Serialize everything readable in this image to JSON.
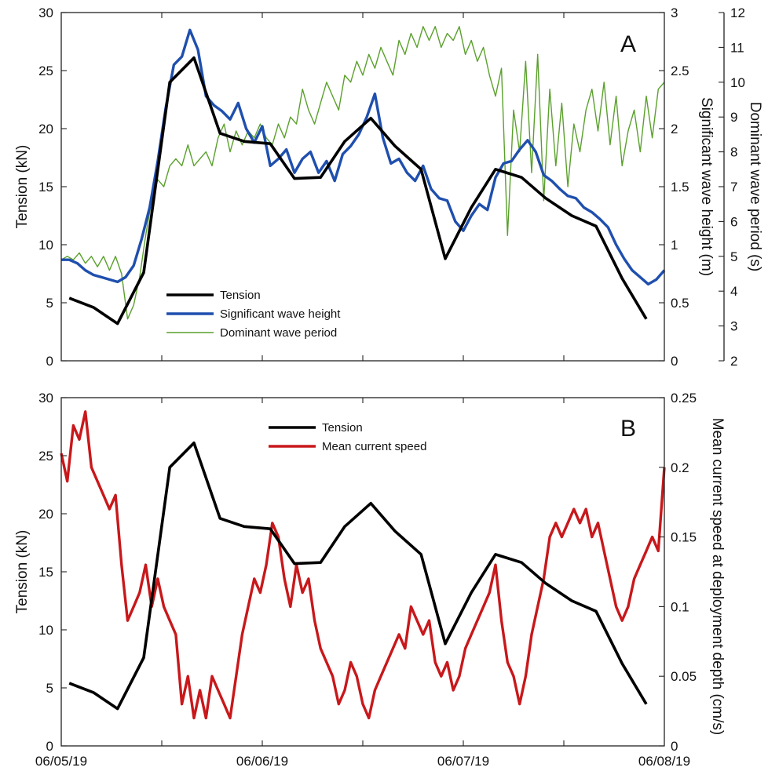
{
  "chart_data": [
    {
      "panel": "A",
      "type": "line",
      "x_ticks": [
        "06/05/19",
        "06/06/19",
        "06/07/19",
        "06/08/19"
      ],
      "xlim": [
        0,
        3
      ],
      "ylabel_left": "Tension (kN)",
      "ylim_left": [
        0,
        30
      ],
      "yticks_left": [
        0,
        5,
        10,
        15,
        20,
        25,
        30
      ],
      "ylabel_right1": "Significant wave height (m)",
      "ylim_right1": [
        0,
        3
      ],
      "yticks_right1": [
        0,
        0.5,
        1,
        1.5,
        2,
        2.5,
        3
      ],
      "ylabel_right2": "Dominant wave period (s)",
      "ylim_right2": [
        2,
        12
      ],
      "yticks_right2": [
        2,
        3,
        4,
        5,
        6,
        7,
        8,
        9,
        10,
        11,
        12
      ],
      "legend_position": "bottom-left",
      "series": [
        {
          "name": "Tension",
          "axis": "left",
          "color": "#000000",
          "x": [
            0.04,
            0.16,
            0.28,
            0.41,
            0.54,
            0.66,
            0.79,
            0.91,
            1.04,
            1.16,
            1.29,
            1.41,
            1.54,
            1.66,
            1.79,
            1.91,
            2.04,
            2.16,
            2.29,
            2.41,
            2.54,
            2.66,
            2.79,
            2.91
          ],
          "y": [
            5.4,
            4.6,
            3.2,
            7.6,
            24.0,
            26.1,
            19.6,
            18.9,
            18.7,
            15.7,
            15.8,
            18.9,
            20.9,
            18.5,
            16.5,
            8.8,
            13.2,
            16.5,
            15.8,
            14.0,
            12.5,
            11.6,
            7.1,
            3.6
          ]
        },
        {
          "name": "Significant wave height",
          "axis": "right1",
          "color": "#1f4fae",
          "x": [
            0.0,
            0.04,
            0.08,
            0.12,
            0.16,
            0.2,
            0.24,
            0.28,
            0.32,
            0.36,
            0.4,
            0.44,
            0.48,
            0.52,
            0.56,
            0.6,
            0.64,
            0.68,
            0.72,
            0.76,
            0.8,
            0.84,
            0.88,
            0.92,
            0.96,
            1.0,
            1.04,
            1.08,
            1.12,
            1.16,
            1.2,
            1.24,
            1.28,
            1.32,
            1.36,
            1.4,
            1.44,
            1.48,
            1.52,
            1.56,
            1.6,
            1.64,
            1.68,
            1.72,
            1.76,
            1.8,
            1.84,
            1.88,
            1.92,
            1.96,
            2.0,
            2.04,
            2.08,
            2.12,
            2.16,
            2.2,
            2.24,
            2.28,
            2.32,
            2.36,
            2.4,
            2.44,
            2.48,
            2.52,
            2.56,
            2.6,
            2.64,
            2.68,
            2.72,
            2.76,
            2.8,
            2.84,
            2.88,
            2.92,
            2.96,
            3.0
          ],
          "y": [
            0.87,
            0.87,
            0.84,
            0.78,
            0.74,
            0.72,
            0.7,
            0.68,
            0.72,
            0.82,
            1.05,
            1.32,
            1.72,
            2.18,
            2.55,
            2.62,
            2.85,
            2.68,
            2.28,
            2.2,
            2.15,
            2.08,
            2.22,
            2.0,
            1.88,
            2.02,
            1.68,
            1.74,
            1.82,
            1.62,
            1.74,
            1.8,
            1.62,
            1.72,
            1.55,
            1.78,
            1.85,
            1.95,
            2.1,
            2.3,
            1.92,
            1.7,
            1.74,
            1.62,
            1.55,
            1.68,
            1.48,
            1.4,
            1.38,
            1.2,
            1.12,
            1.25,
            1.35,
            1.3,
            1.58,
            1.7,
            1.72,
            1.82,
            1.9,
            1.8,
            1.6,
            1.55,
            1.48,
            1.42,
            1.4,
            1.32,
            1.28,
            1.22,
            1.15,
            1.0,
            0.88,
            0.78,
            0.72,
            0.66,
            0.7,
            0.78
          ]
        },
        {
          "name": "Dominant wave period",
          "axis": "right2",
          "color": "#5aa02c",
          "x": [
            0.0,
            0.03,
            0.06,
            0.09,
            0.12,
            0.15,
            0.18,
            0.21,
            0.24,
            0.27,
            0.3,
            0.33,
            0.36,
            0.39,
            0.42,
            0.45,
            0.48,
            0.51,
            0.54,
            0.57,
            0.6,
            0.63,
            0.66,
            0.69,
            0.72,
            0.75,
            0.78,
            0.81,
            0.84,
            0.87,
            0.9,
            0.93,
            0.96,
            0.99,
            1.02,
            1.05,
            1.08,
            1.11,
            1.14,
            1.17,
            1.2,
            1.23,
            1.26,
            1.29,
            1.32,
            1.35,
            1.38,
            1.41,
            1.44,
            1.47,
            1.5,
            1.53,
            1.56,
            1.59,
            1.62,
            1.65,
            1.68,
            1.71,
            1.74,
            1.77,
            1.8,
            1.83,
            1.86,
            1.89,
            1.92,
            1.95,
            1.98,
            2.01,
            2.04,
            2.07,
            2.1,
            2.13,
            2.16,
            2.19,
            2.22,
            2.25,
            2.28,
            2.31,
            2.34,
            2.37,
            2.4,
            2.43,
            2.46,
            2.49,
            2.52,
            2.55,
            2.58,
            2.61,
            2.64,
            2.67,
            2.7,
            2.73,
            2.76,
            2.79,
            2.82,
            2.85,
            2.88,
            2.91,
            2.94,
            2.97,
            3.0
          ],
          "y": [
            4.9,
            5.0,
            4.9,
            5.1,
            4.8,
            5.0,
            4.7,
            5.0,
            4.6,
            5.0,
            4.5,
            3.2,
            3.6,
            4.4,
            5.6,
            6.6,
            7.2,
            7.0,
            7.6,
            7.8,
            7.6,
            8.2,
            7.6,
            7.8,
            8.0,
            7.6,
            8.4,
            8.8,
            8.0,
            8.6,
            8.2,
            8.6,
            8.4,
            8.8,
            8.4,
            8.2,
            8.8,
            8.4,
            9.0,
            8.8,
            9.8,
            9.2,
            8.8,
            9.4,
            10.0,
            9.6,
            9.2,
            10.2,
            10.0,
            10.6,
            10.2,
            10.8,
            10.4,
            11.0,
            10.6,
            10.2,
            11.2,
            10.8,
            11.4,
            11.0,
            11.6,
            11.2,
            11.6,
            11.0,
            11.4,
            11.2,
            11.6,
            10.8,
            11.2,
            10.6,
            11.0,
            10.2,
            9.6,
            10.4,
            5.6,
            9.2,
            8.0,
            10.6,
            7.4,
            10.8,
            6.6,
            9.8,
            7.6,
            9.4,
            7.0,
            8.8,
            8.0,
            9.2,
            9.8,
            8.6,
            10.0,
            8.2,
            9.6,
            7.6,
            8.6,
            9.2,
            8.0,
            9.6,
            8.4,
            9.8,
            10.0
          ]
        }
      ]
    },
    {
      "panel": "B",
      "type": "line",
      "x_ticks": [
        "06/05/19",
        "06/06/19",
        "06/07/19",
        "06/08/19"
      ],
      "xlim": [
        0,
        3
      ],
      "ylabel_left": "Tension (kN)",
      "ylim_left": [
        0,
        30
      ],
      "yticks_left": [
        0,
        5,
        10,
        15,
        20,
        25,
        30
      ],
      "ylabel_right": "Mean current speed at deployment depth (cm/s)",
      "ylim_right": [
        0,
        0.25
      ],
      "yticks_right": [
        0,
        0.05,
        0.1,
        0.15,
        0.2,
        0.25
      ],
      "legend_position": "top-center",
      "series": [
        {
          "name": "Tension",
          "axis": "left",
          "color": "#000000",
          "x": [
            0.04,
            0.16,
            0.28,
            0.41,
            0.54,
            0.66,
            0.79,
            0.91,
            1.04,
            1.16,
            1.29,
            1.41,
            1.54,
            1.66,
            1.79,
            1.91,
            2.04,
            2.16,
            2.29,
            2.41,
            2.54,
            2.66,
            2.79,
            2.91
          ],
          "y": [
            5.4,
            4.6,
            3.2,
            7.6,
            24.0,
            26.1,
            19.6,
            18.9,
            18.7,
            15.7,
            15.8,
            18.9,
            20.9,
            18.5,
            16.5,
            8.8,
            13.2,
            16.5,
            15.8,
            14.0,
            12.5,
            11.6,
            7.1,
            3.6
          ]
        },
        {
          "name": "Mean current speed",
          "axis": "right",
          "color": "#c8181b",
          "x": [
            0.0,
            0.03,
            0.06,
            0.09,
            0.12,
            0.15,
            0.18,
            0.21,
            0.24,
            0.27,
            0.3,
            0.33,
            0.36,
            0.39,
            0.42,
            0.45,
            0.48,
            0.51,
            0.54,
            0.57,
            0.6,
            0.63,
            0.66,
            0.69,
            0.72,
            0.75,
            0.78,
            0.81,
            0.84,
            0.87,
            0.9,
            0.93,
            0.96,
            0.99,
            1.02,
            1.05,
            1.08,
            1.11,
            1.14,
            1.17,
            1.2,
            1.23,
            1.26,
            1.29,
            1.32,
            1.35,
            1.38,
            1.41,
            1.44,
            1.47,
            1.5,
            1.53,
            1.56,
            1.59,
            1.62,
            1.65,
            1.68,
            1.71,
            1.74,
            1.77,
            1.8,
            1.83,
            1.86,
            1.89,
            1.92,
            1.95,
            1.98,
            2.01,
            2.04,
            2.07,
            2.1,
            2.13,
            2.16,
            2.19,
            2.22,
            2.25,
            2.28,
            2.31,
            2.34,
            2.37,
            2.4,
            2.43,
            2.46,
            2.49,
            2.52,
            2.55,
            2.58,
            2.61,
            2.64,
            2.67,
            2.7,
            2.73,
            2.76,
            2.79,
            2.82,
            2.85,
            2.88,
            2.91,
            2.94,
            2.97,
            3.0
          ],
          "y": [
            0.21,
            0.19,
            0.23,
            0.22,
            0.24,
            0.2,
            0.19,
            0.18,
            0.17,
            0.18,
            0.13,
            0.09,
            0.1,
            0.11,
            0.13,
            0.1,
            0.12,
            0.1,
            0.09,
            0.08,
            0.03,
            0.05,
            0.02,
            0.04,
            0.02,
            0.05,
            0.04,
            0.03,
            0.02,
            0.05,
            0.08,
            0.1,
            0.12,
            0.11,
            0.13,
            0.16,
            0.15,
            0.12,
            0.1,
            0.13,
            0.11,
            0.12,
            0.09,
            0.07,
            0.06,
            0.05,
            0.03,
            0.04,
            0.06,
            0.05,
            0.03,
            0.02,
            0.04,
            0.05,
            0.06,
            0.07,
            0.08,
            0.07,
            0.1,
            0.09,
            0.08,
            0.09,
            0.06,
            0.05,
            0.06,
            0.04,
            0.05,
            0.07,
            0.08,
            0.09,
            0.1,
            0.11,
            0.13,
            0.09,
            0.06,
            0.05,
            0.03,
            0.05,
            0.08,
            0.1,
            0.12,
            0.15,
            0.16,
            0.15,
            0.16,
            0.17,
            0.16,
            0.17,
            0.15,
            0.16,
            0.14,
            0.12,
            0.1,
            0.09,
            0.1,
            0.12,
            0.13,
            0.14,
            0.15,
            0.14,
            0.2
          ]
        }
      ]
    }
  ]
}
